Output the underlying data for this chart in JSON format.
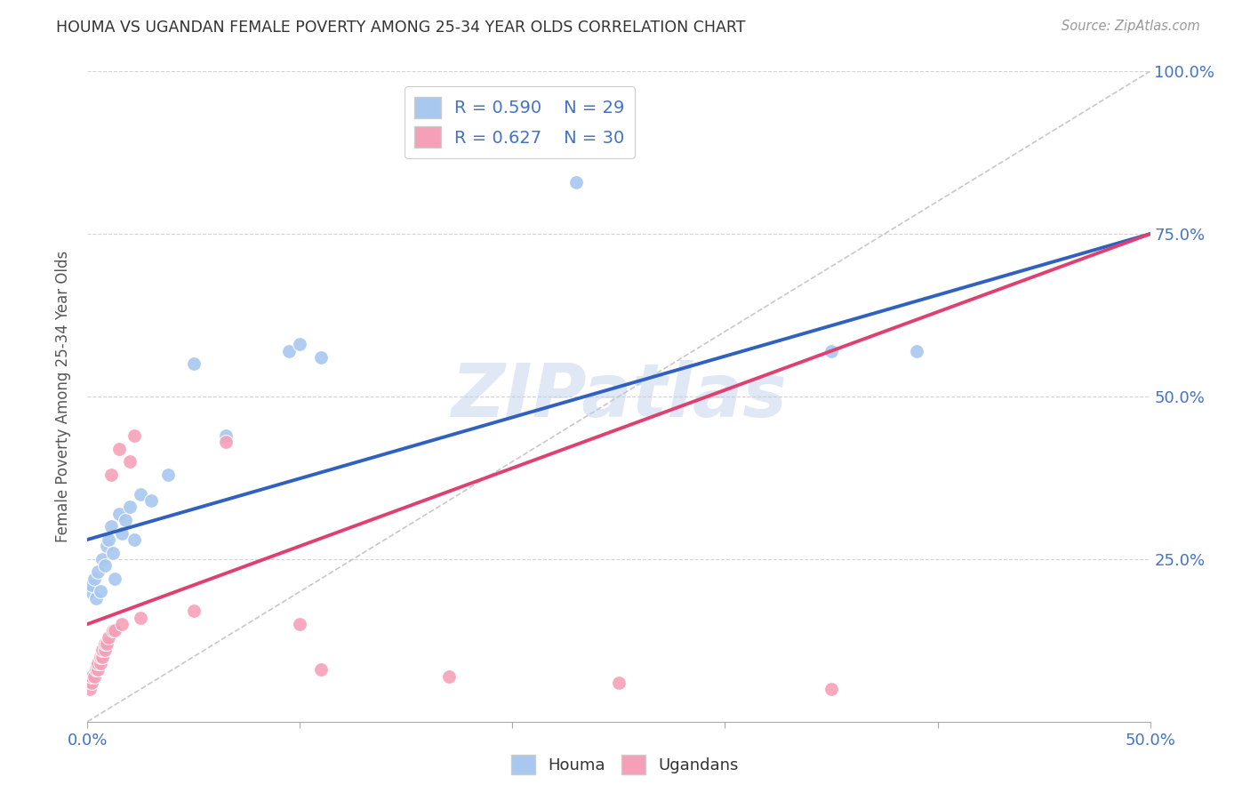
{
  "title": "HOUMA VS UGANDAN FEMALE POVERTY AMONG 25-34 YEAR OLDS CORRELATION CHART",
  "source": "Source: ZipAtlas.com",
  "ylabel_label": "Female Poverty Among 25-34 Year Olds",
  "xlim": [
    0.0,
    0.5
  ],
  "ylim": [
    0.0,
    1.0
  ],
  "houma_R": "0.590",
  "houma_N": "29",
  "ugandan_R": "0.627",
  "ugandan_N": "30",
  "houma_color": "#A8C8F0",
  "ugandan_color": "#F5A0B8",
  "houma_line_color": "#3060C0",
  "ugandan_line_color": "#E04070",
  "diagonal_color": "#C8C8C8",
  "watermark": "ZIPatlas",
  "background_color": "#FFFFFF",
  "grid_color": "#D0D0D0",
  "houma_x": [
    0.001,
    0.002,
    0.003,
    0.004,
    0.005,
    0.006,
    0.007,
    0.008,
    0.009,
    0.01,
    0.011,
    0.012,
    0.013,
    0.015,
    0.016,
    0.018,
    0.02,
    0.022,
    0.025,
    0.03,
    0.038,
    0.05,
    0.065,
    0.095,
    0.1,
    0.11,
    0.35,
    0.39,
    0.23
  ],
  "houma_y": [
    0.2,
    0.21,
    0.22,
    0.19,
    0.23,
    0.2,
    0.25,
    0.24,
    0.27,
    0.28,
    0.3,
    0.26,
    0.22,
    0.32,
    0.29,
    0.31,
    0.33,
    0.28,
    0.35,
    0.34,
    0.38,
    0.55,
    0.44,
    0.57,
    0.58,
    0.56,
    0.57,
    0.57,
    0.83
  ],
  "ugandan_x": [
    0.001,
    0.002,
    0.002,
    0.003,
    0.004,
    0.005,
    0.005,
    0.006,
    0.006,
    0.007,
    0.007,
    0.008,
    0.008,
    0.009,
    0.01,
    0.011,
    0.012,
    0.013,
    0.015,
    0.016,
    0.02,
    0.022,
    0.025,
    0.05,
    0.065,
    0.1,
    0.11,
    0.17,
    0.25,
    0.35
  ],
  "ugandan_y": [
    0.05,
    0.06,
    0.07,
    0.07,
    0.08,
    0.08,
    0.09,
    0.09,
    0.1,
    0.1,
    0.11,
    0.11,
    0.12,
    0.12,
    0.13,
    0.38,
    0.14,
    0.14,
    0.42,
    0.15,
    0.4,
    0.44,
    0.16,
    0.17,
    0.43,
    0.15,
    0.08,
    0.07,
    0.06,
    0.05
  ],
  "houma_line_x0": 0.0,
  "houma_line_y0": 0.28,
  "houma_line_x1": 0.5,
  "houma_line_y1": 0.75,
  "ugandan_line_x0": 0.0,
  "ugandan_line_y0": 0.15,
  "ugandan_line_x1": 0.5,
  "ugandan_line_y1": 0.75
}
